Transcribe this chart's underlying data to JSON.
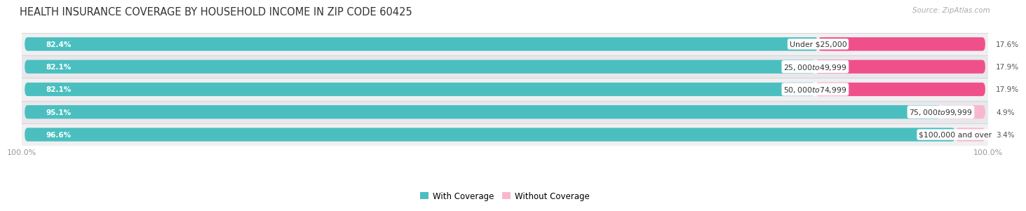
{
  "title": "HEALTH INSURANCE COVERAGE BY HOUSEHOLD INCOME IN ZIP CODE 60425",
  "source": "Source: ZipAtlas.com",
  "categories": [
    "Under $25,000",
    "$25,000 to $49,999",
    "$50,000 to $74,999",
    "$75,000 to $99,999",
    "$100,000 and over"
  ],
  "with_coverage": [
    82.4,
    82.1,
    82.1,
    95.1,
    96.6
  ],
  "without_coverage": [
    17.6,
    17.9,
    17.9,
    4.9,
    3.4
  ],
  "color_coverage": "#4bbfbf",
  "without_colors": [
    "#f0508a",
    "#f0508a",
    "#f0508a",
    "#f8b8cc",
    "#f8b8cc"
  ],
  "fig_bg": "#ffffff",
  "row_bg": [
    "#f0f0f2",
    "#e8e8ec",
    "#f0f0f2",
    "#e8e8ec",
    "#f0f0f2"
  ],
  "title_fontsize": 10.5,
  "bar_height": 0.6,
  "legend_coverage_color": "#4bbfbf",
  "legend_without_color": "#f8b8cc",
  "pct_label_fontsize": 7.5,
  "cat_label_fontsize": 7.8
}
